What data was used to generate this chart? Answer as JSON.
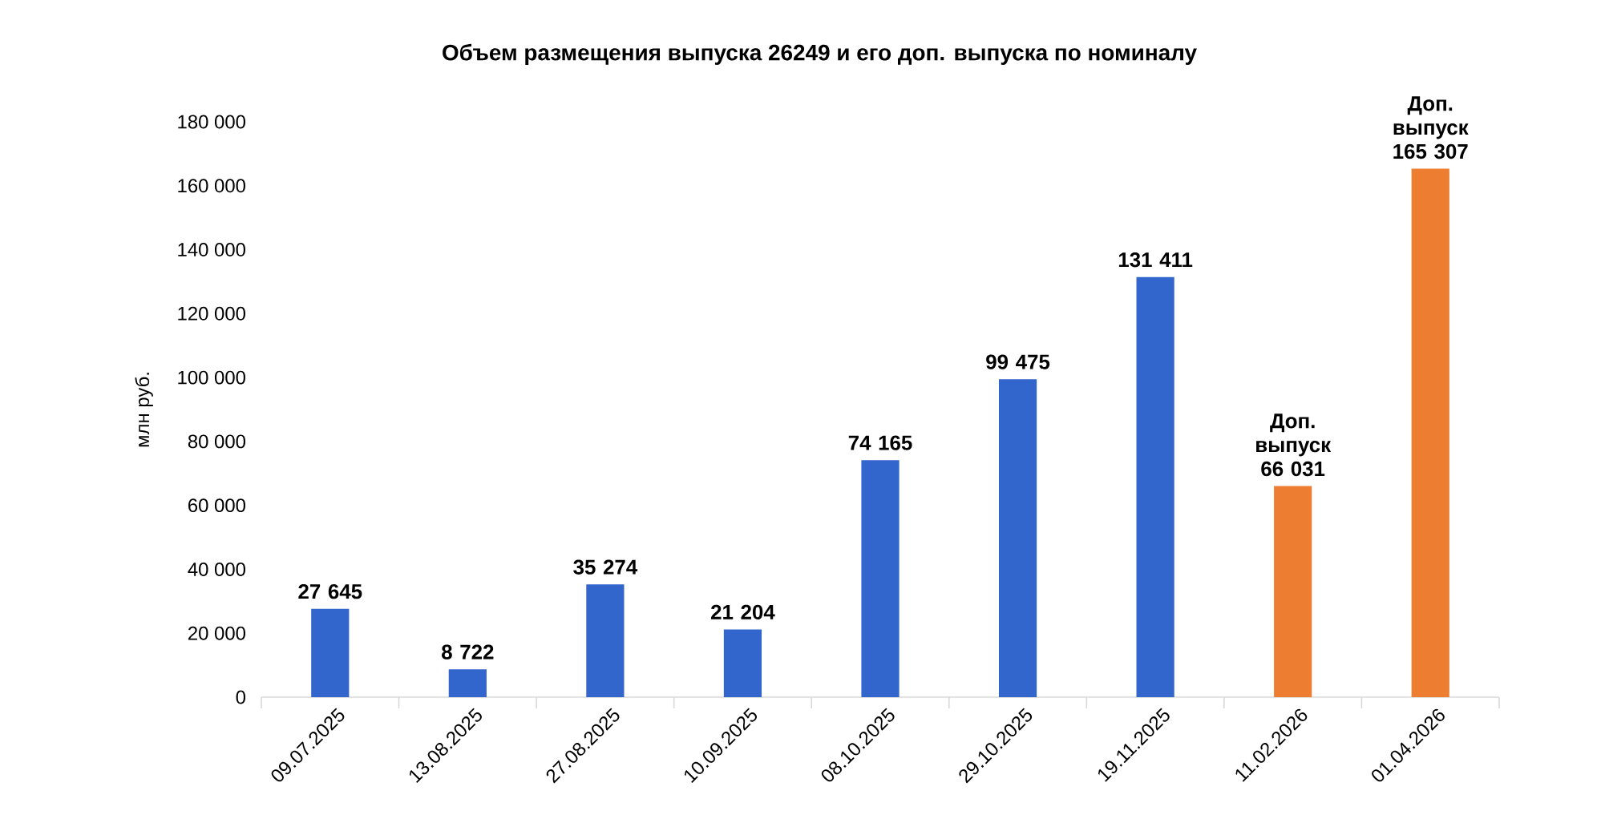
{
  "chart_data": {
    "type": "bar",
    "title": "Объем размещения выпуска 26249 и его доп. выпуска по номиналу",
    "ylabel": "млн руб.",
    "categories": [
      "09.07.2025",
      "13.08.2025",
      "27.08.2025",
      "10.09.2025",
      "08.10.2025",
      "29.10.2025",
      "19.11.2025",
      "11.02.2026",
      "01.04.2026"
    ],
    "values": [
      27645,
      8722,
      35274,
      21204,
      74165,
      99475,
      131411,
      66031,
      165307
    ],
    "colors": [
      "#3366cc",
      "#3366cc",
      "#3366cc",
      "#3366cc",
      "#3366cc",
      "#3366cc",
      "#3366cc",
      "#ed7d31",
      "#ed7d31"
    ],
    "value_labels": [
      "27 645",
      "8 722",
      "35 274",
      "21 204",
      "74 165",
      "99 475",
      "131 411",
      "Доп. выпуск 66 031",
      "Доп. выпуск 165 307"
    ],
    "ylim": [
      0,
      180000
    ],
    "yticks": [
      0,
      {
        "value": 20000,
        "label": "20 000"
      },
      {
        "value": 40000,
        "label": "40 000"
      },
      {
        "value": 60000,
        "label": "60 000"
      },
      {
        "value": 80000,
        "label": "80 000"
      },
      {
        "value": 100000,
        "label": "100 000"
      },
      {
        "value": 120000,
        "label": "120 000"
      },
      {
        "value": 140000,
        "label": "140 000"
      },
      {
        "value": 160000,
        "label": "160 000"
      },
      {
        "value": 180000,
        "label": "180 000"
      }
    ]
  }
}
